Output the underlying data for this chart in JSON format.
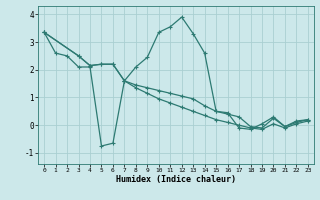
{
  "xlabel": "Humidex (Indice chaleur)",
  "xlim": [
    -0.5,
    23.5
  ],
  "ylim": [
    -1.4,
    4.3
  ],
  "yticks": [
    -1,
    0,
    1,
    2,
    3,
    4
  ],
  "xticks": [
    0,
    1,
    2,
    3,
    4,
    5,
    6,
    7,
    8,
    9,
    10,
    11,
    12,
    13,
    14,
    15,
    16,
    17,
    18,
    19,
    20,
    21,
    22,
    23
  ],
  "background_color": "#cce8ea",
  "grid_color": "#aacfd2",
  "line_color": "#2d7a72",
  "curve1_x": [
    0,
    1,
    2,
    3,
    4,
    5,
    6,
    7,
    8,
    9,
    10,
    11,
    12,
    13,
    14,
    15,
    16,
    17,
    18,
    19,
    20,
    21,
    22,
    23
  ],
  "curve1_y": [
    3.35,
    2.6,
    2.5,
    2.1,
    2.1,
    -0.75,
    -0.65,
    1.6,
    2.1,
    2.45,
    3.35,
    3.55,
    3.9,
    3.3,
    2.6,
    0.5,
    0.45,
    -0.1,
    -0.15,
    0.05,
    0.3,
    -0.05,
    0.15,
    0.2
  ],
  "curve2_x": [
    0,
    3,
    4,
    5,
    6,
    7,
    8,
    9,
    10,
    11,
    12,
    13,
    14,
    15,
    16,
    17,
    18,
    19,
    20,
    21,
    22,
    23
  ],
  "curve2_y": [
    3.35,
    2.5,
    2.15,
    2.2,
    2.2,
    1.6,
    1.45,
    1.35,
    1.25,
    1.15,
    1.05,
    0.95,
    0.7,
    0.5,
    0.4,
    0.3,
    -0.05,
    -0.1,
    0.25,
    -0.05,
    0.1,
    0.2
  ],
  "curve3_x": [
    0,
    3,
    4,
    5,
    6,
    7,
    8,
    9,
    10,
    11,
    12,
    13,
    14,
    15,
    16,
    17,
    18,
    19,
    20,
    21,
    22,
    23
  ],
  "curve3_y": [
    3.35,
    2.5,
    2.15,
    2.2,
    2.2,
    1.6,
    1.35,
    1.15,
    0.95,
    0.8,
    0.65,
    0.5,
    0.35,
    0.2,
    0.1,
    0.0,
    -0.1,
    -0.15,
    0.05,
    -0.1,
    0.05,
    0.15
  ]
}
